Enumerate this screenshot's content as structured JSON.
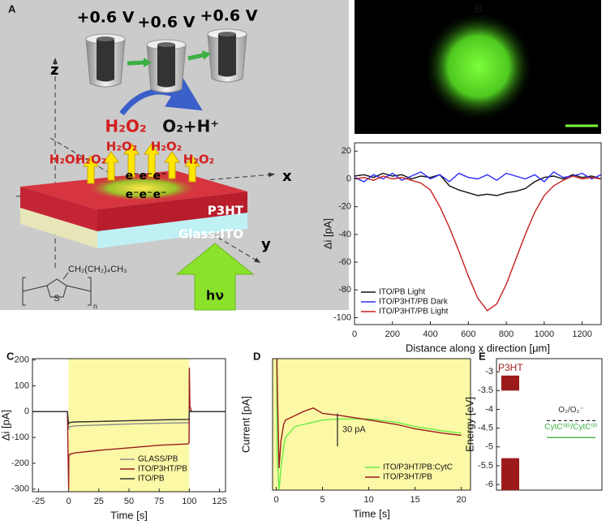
{
  "schematic": {
    "panel": "A",
    "voltages": [
      "+0.6 V",
      "+0.6 V",
      "+0.6 V"
    ],
    "axes": [
      "z",
      "x",
      "y"
    ],
    "products": [
      "H₂O₂",
      "O₂+H⁺"
    ],
    "released": [
      "H₂O₂",
      "H₂O₂",
      "H₂O₂",
      "H₂O₂",
      "H₂O₂"
    ],
    "electrons": [
      "e⁻e⁻e⁻",
      "e⁻e⁻e⁻"
    ],
    "layers": [
      "P3HT",
      "Glass:ITO"
    ],
    "light": "hν",
    "monomer": {
      "side_chain": "CH₂(CH₂)₄CH₃",
      "atom": "S",
      "repeat": "n"
    }
  },
  "chart_data": [
    {
      "type": "line",
      "panel": "B",
      "xlabel": "Distance along x direction [μm]",
      "ylabel": "Δi [pA]",
      "x": [
        0,
        50,
        100,
        150,
        200,
        250,
        300,
        350,
        400,
        450,
        500,
        550,
        600,
        650,
        700,
        750,
        800,
        850,
        900,
        950,
        1000,
        1050,
        1100,
        1150,
        1200,
        1250,
        1300
      ],
      "series": [
        {
          "name": "ITO/PB Light",
          "color": "#111111",
          "values": [
            2,
            3,
            1,
            4,
            2,
            3,
            0,
            2,
            1,
            3,
            -5,
            -8,
            -10,
            -12,
            -11,
            -12,
            -10,
            -9,
            -7,
            -2,
            1,
            2,
            0,
            3,
            1,
            2,
            0
          ]
        },
        {
          "name": "ITO/P3HT/PB Dark",
          "color": "#2b2bff",
          "values": [
            1,
            -2,
            3,
            0,
            4,
            -1,
            2,
            5,
            0,
            3,
            -2,
            4,
            1,
            0,
            3,
            -1,
            4,
            2,
            0,
            3,
            -2,
            5,
            1,
            2,
            4,
            0,
            3
          ]
        },
        {
          "name": "ITO/P3HT/PB Light",
          "color": "#c81e1e",
          "values": [
            0,
            1,
            -1,
            2,
            0,
            1,
            -1,
            -3,
            -8,
            -20,
            -35,
            -52,
            -70,
            -86,
            -95,
            -90,
            -76,
            -58,
            -40,
            -24,
            -12,
            -5,
            -1,
            2,
            0,
            1,
            0
          ]
        }
      ],
      "xlim": [
        0,
        1300
      ],
      "xticks": [
        0,
        200,
        400,
        600,
        800,
        1000,
        1200
      ],
      "ylim": [
        -105,
        26
      ],
      "yticks": [
        20,
        0,
        -20,
        -40,
        -60,
        -80,
        -100
      ],
      "legend": "lower left"
    },
    {
      "type": "line",
      "panel": "C",
      "xlabel": "Time [s]",
      "ylabel": "Δi [pA]",
      "x": [
        -30,
        -1,
        0,
        0.2,
        1,
        5,
        25,
        50,
        75,
        99,
        99.8,
        100,
        100.5,
        102,
        110,
        130
      ],
      "series": [
        {
          "name": "GLASS/PB",
          "color": "#8c8c8c",
          "values": [
            0,
            0,
            -70,
            -60,
            -58,
            -55,
            -52,
            -48,
            -45,
            -43,
            -42,
            10,
            0,
            0,
            0,
            0
          ]
        },
        {
          "name": "ITO/P3HT/PB",
          "color": "#9b1b1b",
          "values": [
            0,
            0,
            -300,
            -170,
            -165,
            -160,
            -150,
            -140,
            -130,
            -125,
            -120,
            170,
            20,
            0,
            0,
            0
          ]
        },
        {
          "name": "ITO/PB",
          "color": "#333333",
          "values": [
            0,
            0,
            -50,
            -45,
            -42,
            -40,
            -38,
            -35,
            -32,
            -30,
            -28,
            5,
            0,
            0,
            0,
            0
          ]
        }
      ],
      "highlight": {
        "xrange": [
          0,
          100
        ],
        "color": "#fbf8a6"
      },
      "xlim": [
        -30,
        130
      ],
      "xticks": [
        -25,
        0,
        25,
        50,
        75,
        100,
        125
      ],
      "ylim": [
        -310,
        205
      ],
      "yticks": [
        200,
        100,
        0,
        -100,
        -200,
        -300
      ],
      "legend": "lower right"
    },
    {
      "type": "line",
      "panel": "D",
      "xlabel": "Time [s]",
      "ylabel": "Current [pA]",
      "background": "#fbf8a6",
      "x": [
        0,
        0.1,
        0.3,
        0.5,
        0.8,
        1,
        2,
        3,
        4,
        5,
        7,
        10,
        13,
        15,
        18,
        20
      ],
      "series": [
        {
          "name": "ITO/P3HT/PB:CytC",
          "color": "#66ee44",
          "values": [
            120,
            -10,
            -40,
            -20,
            0,
            8,
            18,
            20,
            22,
            24,
            25,
            25,
            22,
            18,
            14,
            12
          ]
        },
        {
          "name": "ITO/P3HT/PB",
          "color": "#9b1b1b",
          "values": [
            120,
            60,
            -20,
            5,
            20,
            24,
            28,
            32,
            35,
            30,
            28,
            24,
            20,
            16,
            12,
            10
          ]
        }
      ],
      "scale_bar": {
        "value": 30,
        "label": "30 pA"
      },
      "xlim": [
        -0.4,
        21
      ],
      "xticks": [
        0,
        5,
        10,
        15,
        20
      ],
      "ylim": [
        -40,
        80
      ],
      "legend": "lower right"
    },
    {
      "type": "levels",
      "panel": "E",
      "ylabel": "Energy [eV]",
      "bars": [
        {
          "name": "P3HT",
          "color": "#9b1b1b",
          "values": [
            -3.1,
            -3.5
          ]
        },
        {
          "color": "#9b1b1b",
          "values": [
            -5.3,
            -6.15
          ]
        }
      ],
      "levels": [
        {
          "name": "O₂/O₂⁻",
          "color": "#333333",
          "dashed": true,
          "value": -4.3
        },
        {
          "name": "CytC⁽ᴵᴵᴵ⁾/CytC⁽ᴵᴵ⁾",
          "color": "#3cb043",
          "dashed": false,
          "value": -4.75
        }
      ],
      "ylim": [
        -2.65,
        -6.15
      ],
      "yticks": [
        -3,
        -3.5,
        -4,
        -4.5,
        -5,
        -5.5,
        -6
      ]
    }
  ]
}
